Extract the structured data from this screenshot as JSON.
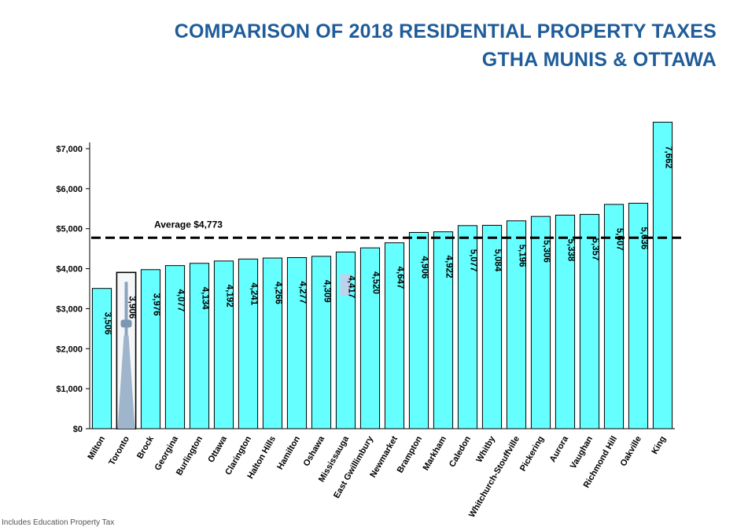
{
  "header": {
    "title_line1": "COMPARISON OF 2018 RESIDENTIAL PROPERTY TAXES",
    "title_line2": "GTHA MUNIS & OTTAWA"
  },
  "footnote": "Includes Education Property Tax",
  "colors": {
    "bar_fill": "#66ffff",
    "bar_stroke": "#000000",
    "title": "#1f5c99",
    "highlight_label": "#bcd3ee"
  },
  "chart_data": {
    "type": "bar",
    "title": "COMPARISON OF 2018 RESIDENTIAL PROPERTY TAXES — GTHA MUNIS & OTTAWA",
    "xlabel": "",
    "ylabel": "",
    "ylim": [
      0,
      7000
    ],
    "yticks": [
      0,
      1000,
      2000,
      3000,
      4000,
      5000,
      6000,
      7000
    ],
    "ytick_labels": [
      "$0",
      "$1,000",
      "$2,000",
      "$3,000",
      "$4,000",
      "$5,000",
      "$6,000",
      "$7,000"
    ],
    "categories": [
      "Milton",
      "Toronto",
      "Brock",
      "Georgina",
      "Burlington",
      "Ottawa",
      "Clarington",
      "Halton Hills",
      "Hamilton",
      "Oshawa",
      "Mississauga",
      "East Gwillimbury",
      "Newmarket",
      "Brampton",
      "Markham",
      "Caledon",
      "Whitby",
      "Whitchurch-Stouffville",
      "Pickering",
      "Aurora",
      "Vaughan",
      "Richmond Hill",
      "Oakville",
      "King"
    ],
    "values": [
      3506,
      3906,
      3976,
      4077,
      4134,
      4192,
      4241,
      4266,
      4277,
      4309,
      4417,
      4520,
      4647,
      4906,
      4922,
      5077,
      5084,
      5196,
      5306,
      5338,
      5357,
      5607,
      5636,
      7662
    ],
    "value_labels": [
      "3,506",
      "3,906",
      "3,976",
      "4,077",
      "4,134",
      "4,192",
      "4,241",
      "4,266",
      "4,277",
      "4,309",
      "4,417",
      "4,520",
      "4,647",
      "4,906",
      "4,922",
      "5,077",
      "5,084",
      "5,196",
      "5,306",
      "5,338",
      "5,357",
      "5,607",
      "5,636",
      "7,662"
    ],
    "highlighted_categories": [
      "Toronto",
      "Mississauga"
    ],
    "average": {
      "value": 4773,
      "label": "Average $4,773",
      "style": "dashed"
    },
    "grid": false,
    "legend": "none"
  }
}
